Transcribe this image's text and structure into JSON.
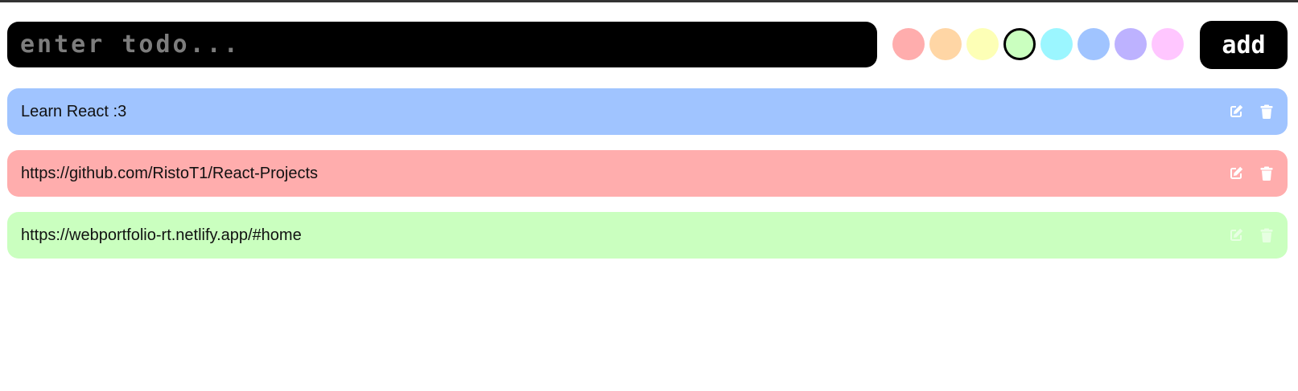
{
  "input": {
    "placeholder": "enter todo...",
    "value": ""
  },
  "colors": [
    {
      "name": "red",
      "hex": "#ffadad",
      "selected": false
    },
    {
      "name": "orange",
      "hex": "#ffd6a5",
      "selected": false
    },
    {
      "name": "yellow",
      "hex": "#fdffb6",
      "selected": false
    },
    {
      "name": "green",
      "hex": "#caffbf",
      "selected": true
    },
    {
      "name": "cyan",
      "hex": "#9bf6ff",
      "selected": false
    },
    {
      "name": "blue",
      "hex": "#a0c4ff",
      "selected": false
    },
    {
      "name": "purple",
      "hex": "#bdb2ff",
      "selected": false
    },
    {
      "name": "pink",
      "hex": "#ffc6ff",
      "selected": false
    }
  ],
  "add_button": {
    "label": "add"
  },
  "todos": [
    {
      "text": "Learn React :3",
      "color": "#a0c4ff",
      "edit_icon": "edit-icon",
      "delete_icon": "trash-icon"
    },
    {
      "text": "https://github.com/RistoT1/React-Projects",
      "color": "#ffadad",
      "edit_icon": "edit-icon",
      "delete_icon": "trash-icon"
    },
    {
      "text": "https://webportfolio-rt.netlify.app/#home",
      "color": "#caffbf",
      "edit_icon": "edit-icon",
      "delete_icon": "trash-icon"
    }
  ]
}
